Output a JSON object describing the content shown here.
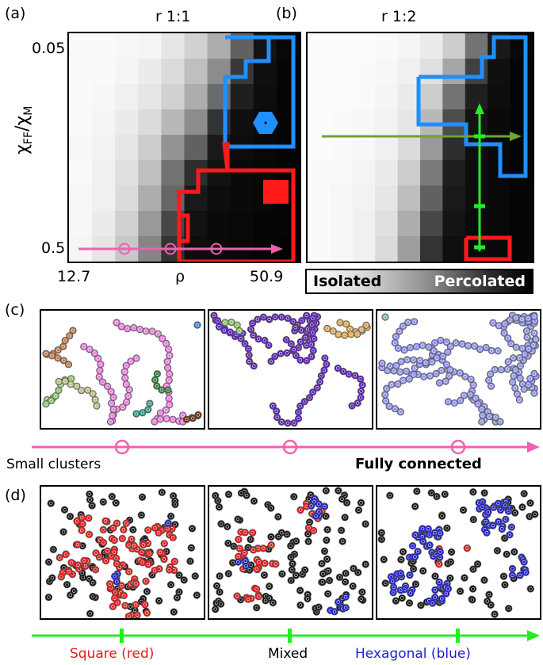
{
  "figure": {
    "panel_a": {
      "tag": "(a)",
      "title": "r 1:1"
    },
    "panel_b": {
      "tag": "(b)",
      "title": "r 1:2"
    },
    "panel_c": {
      "tag": "(c)"
    },
    "panel_d": {
      "tag": "(d)"
    },
    "y_axis": {
      "label": "χFF/χM",
      "label_main": "χ",
      "sub1": "FF",
      "slash": "/",
      "label_main2": "χ",
      "sub2": "M",
      "top_tick": "0.05",
      "bottom_tick": "0.5"
    },
    "x_axis": {
      "left_tick": "12.7",
      "label": "ρ",
      "right_tick": "50.9"
    },
    "colorbar": {
      "left_label": "Isolated",
      "right_label": "Percolated"
    },
    "arrow_c": {
      "left_label": "Small clusters",
      "right_label": "Fully connected"
    },
    "arrow_d": {
      "left_label": "Square (red)",
      "middle_label": "Mixed",
      "right_label": "Hexagonal (blue)"
    }
  },
  "colors": {
    "pink": "#f060b0",
    "green_line": "#22ee22",
    "olive_arrow": "#6aa630",
    "blue_region": "#1e90ff",
    "red_region": "#ff1a1a",
    "square_label": "#e31a1c",
    "hex_label": "#1f1fcc"
  },
  "chart_data": {
    "type": "heatmap",
    "panels": [
      {
        "title": "r 1:1",
        "xlabel": "ρ",
        "ylabel": "χFF/χM",
        "x_range": [
          12.7,
          50.9
        ],
        "y_range": [
          0.05,
          0.5
        ],
        "grid": [
          [
            0.02,
            0.02,
            0.03,
            0.04,
            0.1,
            0.18,
            0.32,
            0.62,
            0.92,
            0.97
          ],
          [
            0.02,
            0.02,
            0.04,
            0.08,
            0.14,
            0.25,
            0.45,
            0.78,
            0.94,
            0.98
          ],
          [
            0.02,
            0.03,
            0.06,
            0.1,
            0.18,
            0.32,
            0.58,
            0.88,
            0.95,
            0.98
          ],
          [
            0.02,
            0.04,
            0.08,
            0.14,
            0.28,
            0.45,
            0.8,
            0.94,
            0.96,
            0.98
          ],
          [
            0.03,
            0.05,
            0.1,
            0.2,
            0.42,
            0.62,
            0.9,
            0.95,
            0.97,
            0.98
          ],
          [
            0.02,
            0.06,
            0.12,
            0.25,
            0.55,
            0.82,
            0.93,
            0.96,
            0.97,
            0.98
          ],
          [
            0.03,
            0.06,
            0.14,
            0.32,
            0.6,
            0.9,
            0.95,
            0.96,
            0.97,
            0.98
          ],
          [
            0.03,
            0.08,
            0.18,
            0.4,
            0.72,
            0.93,
            0.96,
            0.97,
            0.98,
            0.98
          ],
          [
            0.04,
            0.1,
            0.22,
            0.48,
            0.8,
            0.95,
            0.96,
            0.97,
            0.98,
            0.99
          ]
        ]
      },
      {
        "title": "r 1:2",
        "xlabel": "ρ",
        "ylabel": "χFF/χM",
        "x_range": [
          12.7,
          50.9
        ],
        "y_range": [
          0.05,
          0.5
        ],
        "grid": [
          [
            0.01,
            0.01,
            0.01,
            0.02,
            0.04,
            0.08,
            0.2,
            0.55,
            0.9,
            0.97
          ],
          [
            0.01,
            0.01,
            0.02,
            0.03,
            0.06,
            0.12,
            0.35,
            0.75,
            0.94,
            0.98
          ],
          [
            0.01,
            0.01,
            0.02,
            0.04,
            0.08,
            0.2,
            0.55,
            0.88,
            0.95,
            0.98
          ],
          [
            0.01,
            0.02,
            0.03,
            0.05,
            0.1,
            0.28,
            0.7,
            0.92,
            0.96,
            0.98
          ],
          [
            0.01,
            0.02,
            0.03,
            0.06,
            0.14,
            0.4,
            0.82,
            0.94,
            0.96,
            0.98
          ],
          [
            0.02,
            0.02,
            0.04,
            0.08,
            0.2,
            0.52,
            0.88,
            0.95,
            0.97,
            0.98
          ],
          [
            0.02,
            0.03,
            0.05,
            0.1,
            0.26,
            0.62,
            0.9,
            0.95,
            0.97,
            0.98
          ],
          [
            0.02,
            0.03,
            0.06,
            0.12,
            0.32,
            0.72,
            0.92,
            0.96,
            0.97,
            0.98
          ],
          [
            0.02,
            0.03,
            0.06,
            0.14,
            0.38,
            0.8,
            0.94,
            0.96,
            0.97,
            0.98
          ]
        ]
      }
    ],
    "colorbar": [
      "Isolated",
      "Percolated"
    ]
  }
}
